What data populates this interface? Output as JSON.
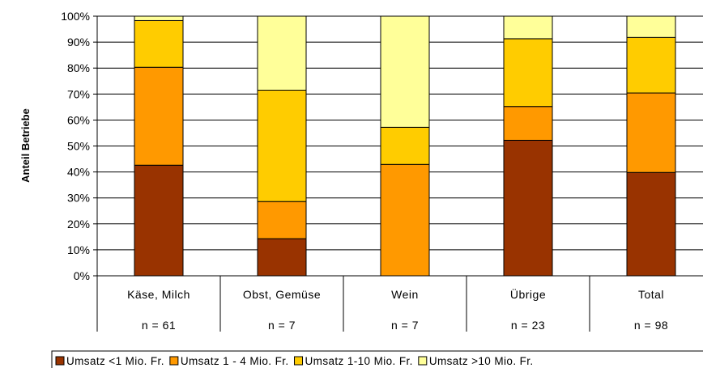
{
  "chart_data": {
    "type": "bar",
    "stacked": true,
    "percent": true,
    "title": "",
    "xlabel": "",
    "ylabel": "Anteil Betriebe",
    "ylim": [
      0,
      100
    ],
    "yticks": [
      "0%",
      "10%",
      "20%",
      "30%",
      "40%",
      "50%",
      "60%",
      "70%",
      "80%",
      "90%",
      "100%"
    ],
    "grid": true,
    "legend_position": "bottom",
    "categories": [
      "Käse, Milch",
      "Obst, Gemüse",
      "Wein",
      "Übrige",
      "Total"
    ],
    "counts": [
      "n = 61",
      "n = 7",
      "n = 7",
      "n = 23",
      "n = 98"
    ],
    "series": [
      {
        "name": "Umsatz <1 Mio. Fr.",
        "color": "#993300",
        "values": [
          42.6,
          14.3,
          0,
          52.2,
          39.8
        ]
      },
      {
        "name": "Umsatz 1 - 4 Mio. Fr.",
        "color": "#FF9900",
        "values": [
          37.7,
          14.3,
          42.9,
          13.0,
          30.6
        ]
      },
      {
        "name": "Umsatz 1-10 Mio. Fr.",
        "color": "#FFCC00",
        "values": [
          18.0,
          42.9,
          14.3,
          26.1,
          21.4
        ]
      },
      {
        "name": "Umsatz >10 Mio. Fr.",
        "color": "#FFFF99",
        "values": [
          1.7,
          28.5,
          42.8,
          8.7,
          8.2
        ]
      }
    ]
  }
}
